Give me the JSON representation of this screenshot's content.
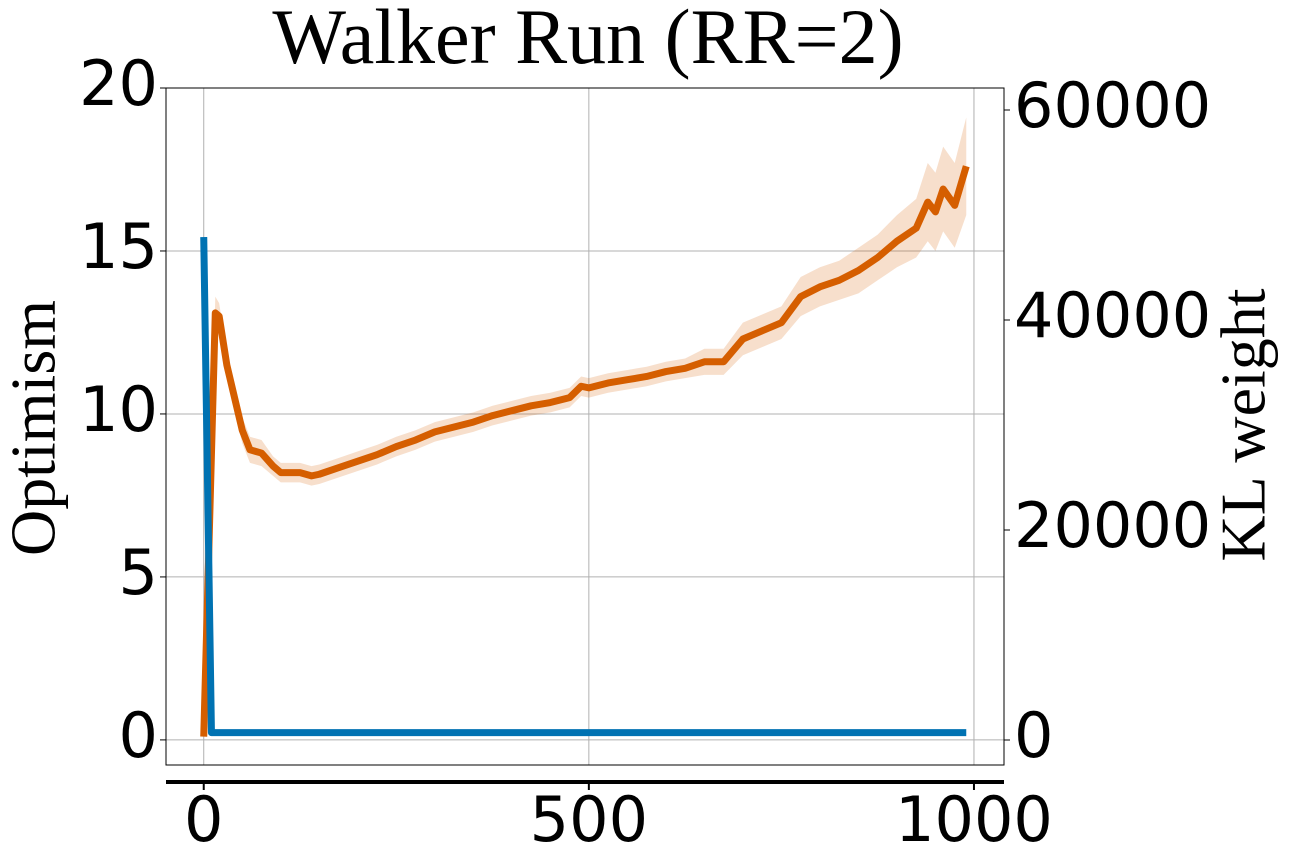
{
  "chart_data": {
    "type": "line",
    "title": "Walker Run (RR=2)",
    "ylabel": "Optimism",
    "y2label": "KL weight",
    "xlim": [
      -49,
      1039
    ],
    "xticks": [
      0,
      500,
      1000
    ],
    "ylim": [
      -0.77,
      20
    ],
    "yticks": [
      0,
      5,
      10,
      15,
      20
    ],
    "y2lim": [
      -2381,
      62095
    ],
    "y2ticks": [
      0,
      20000,
      40000,
      60000
    ],
    "grid": true,
    "series": [
      {
        "name": "Optimism",
        "color": "#d55e00",
        "axis": "y",
        "x": [
          0,
          15,
          20,
          30,
          40,
          50,
          60,
          75,
          90,
          100,
          110,
          125,
          140,
          150,
          175,
          200,
          225,
          250,
          275,
          300,
          325,
          350,
          375,
          400,
          425,
          450,
          475,
          490,
          500,
          525,
          550,
          575,
          600,
          625,
          650,
          675,
          700,
          725,
          750,
          775,
          800,
          825,
          850,
          875,
          900,
          925,
          940,
          950,
          960,
          975,
          990
        ],
        "values": [
          0.1,
          13.1,
          13.0,
          11.5,
          10.5,
          9.5,
          8.9,
          8.8,
          8.4,
          8.2,
          8.2,
          8.2,
          8.1,
          8.15,
          8.35,
          8.55,
          8.75,
          9.0,
          9.2,
          9.45,
          9.6,
          9.75,
          9.95,
          10.1,
          10.25,
          10.35,
          10.5,
          10.85,
          10.8,
          10.95,
          11.05,
          11.15,
          11.3,
          11.4,
          11.6,
          11.6,
          12.3,
          12.55,
          12.8,
          13.6,
          13.9,
          14.1,
          14.4,
          14.8,
          15.3,
          15.7,
          16.5,
          16.2,
          16.9,
          16.4,
          17.6
        ],
        "error": [
          0.1,
          0.5,
          0.4,
          0.4,
          0.4,
          0.4,
          0.4,
          0.4,
          0.3,
          0.3,
          0.3,
          0.3,
          0.3,
          0.3,
          0.3,
          0.3,
          0.3,
          0.3,
          0.3,
          0.3,
          0.3,
          0.3,
          0.3,
          0.3,
          0.3,
          0.3,
          0.3,
          0.3,
          0.3,
          0.3,
          0.3,
          0.3,
          0.3,
          0.3,
          0.4,
          0.4,
          0.5,
          0.5,
          0.5,
          0.6,
          0.6,
          0.6,
          0.7,
          0.7,
          0.8,
          0.9,
          1.2,
          1.2,
          1.3,
          1.3,
          1.5
        ]
      },
      {
        "name": "KL weight",
        "color": "#0072b2",
        "axis": "y2",
        "x": [
          0,
          10,
          990
        ],
        "values": [
          47900,
          700,
          700
        ]
      }
    ]
  }
}
